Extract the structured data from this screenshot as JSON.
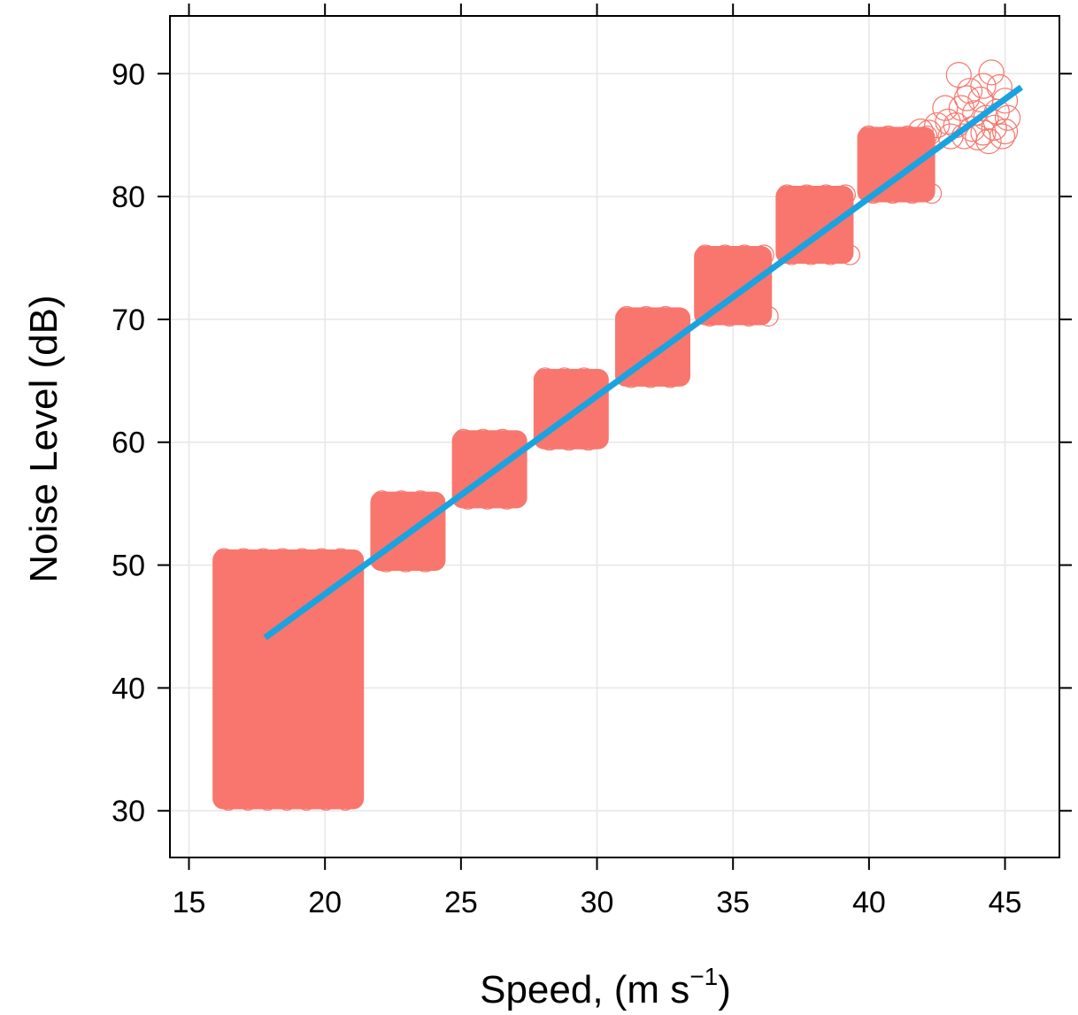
{
  "chart_data": {
    "type": "scatter",
    "xlabel": "Speed, (m s",
    "xlabel_superscript": "−1",
    "xlabel_suffix": ")",
    "ylabel": "Noise Level (dB)",
    "xlim": [
      14.3,
      47.0
    ],
    "ylim": [
      26.2,
      94.7
    ],
    "xticks": [
      15,
      20,
      25,
      30,
      35,
      40,
      45
    ],
    "yticks": [
      30,
      40,
      50,
      60,
      70,
      80,
      90
    ],
    "grid": true,
    "colors": {
      "points": "#f8766d",
      "fit_line": "#1aa3e0",
      "grid": "#e6e6e6",
      "axes": "#000000"
    },
    "point_clusters": [
      {
        "x_range": [
          15.9,
          21.4
        ],
        "y_range": [
          30.2,
          51.2
        ]
      },
      {
        "x_range": [
          21.7,
          24.4
        ],
        "y_range": [
          49.6,
          55.9
        ]
      },
      {
        "x_range": [
          24.7,
          27.4
        ],
        "y_range": [
          54.7,
          60.9
        ]
      },
      {
        "x_range": [
          27.7,
          30.4
        ],
        "y_range": [
          59.5,
          65.9
        ]
      },
      {
        "x_range": [
          30.7,
          33.4
        ],
        "y_range": [
          64.6,
          70.9
        ]
      },
      {
        "x_range": [
          33.6,
          36.4
        ],
        "y_range": [
          69.6,
          75.9
        ]
      },
      {
        "x_range": [
          36.6,
          39.4
        ],
        "y_range": [
          74.6,
          80.8
        ]
      },
      {
        "x_range": [
          39.6,
          42.4
        ],
        "y_range": [
          79.6,
          85.6
        ]
      }
    ],
    "sparse_points": [
      {
        "x": 43.3,
        "y": 89.9
      },
      {
        "x": 43.7,
        "y": 88.6
      },
      {
        "x": 44.5,
        "y": 90.1
      },
      {
        "x": 44.1,
        "y": 87.9
      },
      {
        "x": 44.8,
        "y": 88.9
      },
      {
        "x": 45.0,
        "y": 87.8
      },
      {
        "x": 43.4,
        "y": 87.2
      },
      {
        "x": 43.9,
        "y": 86.8
      },
      {
        "x": 44.3,
        "y": 86.4
      },
      {
        "x": 44.7,
        "y": 86.9
      },
      {
        "x": 45.1,
        "y": 86.4
      },
      {
        "x": 43.2,
        "y": 85.8
      },
      {
        "x": 43.8,
        "y": 85.5
      },
      {
        "x": 44.2,
        "y": 85.2
      },
      {
        "x": 44.6,
        "y": 85.6
      },
      {
        "x": 45.0,
        "y": 85.3
      },
      {
        "x": 43.5,
        "y": 84.9
      },
      {
        "x": 44.0,
        "y": 84.8
      },
      {
        "x": 42.9,
        "y": 86.1
      },
      {
        "x": 43.0,
        "y": 84.9
      },
      {
        "x": 44.4,
        "y": 84.5
      },
      {
        "x": 44.9,
        "y": 84.9
      },
      {
        "x": 43.6,
        "y": 88.0
      },
      {
        "x": 44.2,
        "y": 89.0
      },
      {
        "x": 42.8,
        "y": 87.2
      },
      {
        "x": 42.5,
        "y": 85.8
      },
      {
        "x": 42.2,
        "y": 85.2
      },
      {
        "x": 41.9,
        "y": 85.3
      }
    ],
    "fit_line": {
      "x": [
        17.8,
        45.6
      ],
      "y": [
        44.1,
        88.9
      ]
    }
  }
}
